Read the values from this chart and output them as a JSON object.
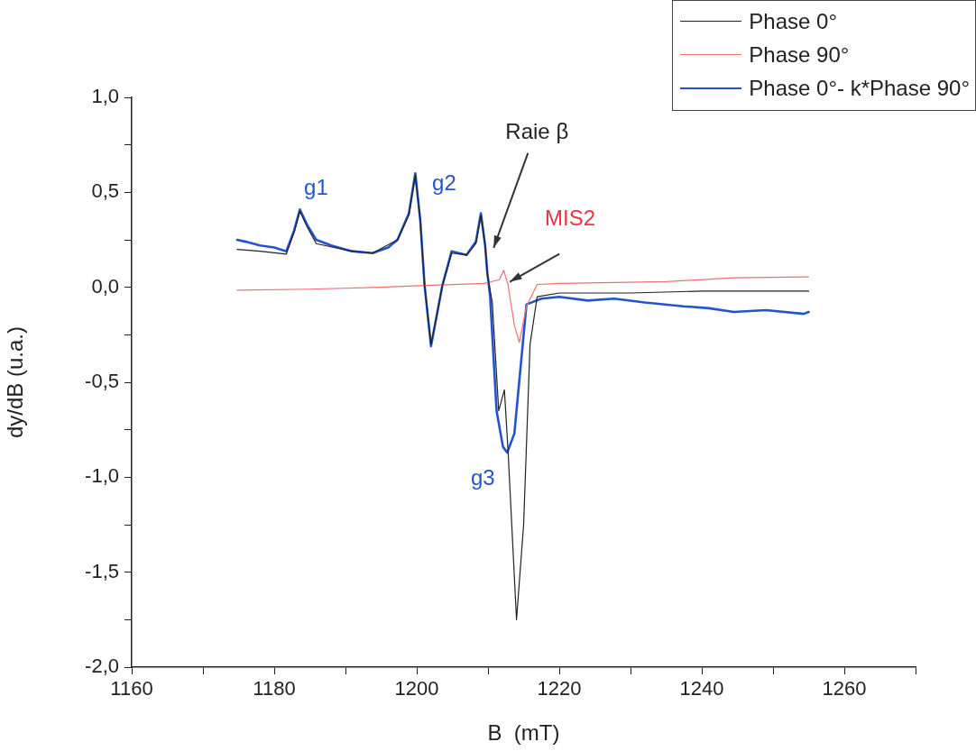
{
  "chart_data": {
    "type": "line",
    "xlabel": "B  (mT)",
    "ylabel": "dy/dB (u.a.)",
    "xlim": [
      1160,
      1270
    ],
    "ylim": [
      -2.0,
      1.0
    ],
    "xticks": [
      1160,
      {
        "value": 1170,
        "label": null
      },
      1180,
      {
        "value": 1190,
        "label": null
      },
      1200,
      {
        "value": 1210,
        "label": null
      },
      1220,
      {
        "value": 1230,
        "label": null
      },
      1240,
      {
        "value": 1250,
        "label": null
      },
      1260,
      {
        "value": 1270,
        "label": null
      }
    ],
    "yticks": [
      {
        "value": -2.0,
        "label": "-2,0"
      },
      {
        "value": -1.75,
        "label": null
      },
      {
        "value": -1.5,
        "label": "-1,5"
      },
      {
        "value": -1.25,
        "label": null
      },
      {
        "value": -1.0,
        "label": "-1,0"
      },
      {
        "value": -0.75,
        "label": null
      },
      {
        "value": -0.5,
        "label": "-0,5"
      },
      {
        "value": -0.25,
        "label": null
      },
      {
        "value": 0.0,
        "label": "0,0"
      },
      {
        "value": 0.25,
        "label": null
      },
      {
        "value": 0.5,
        "label": "0,5"
      },
      {
        "value": 0.75,
        "label": null
      },
      {
        "value": 1.0,
        "label": "1,0"
      }
    ],
    "grid": false,
    "legend": "top right",
    "marker": "none",
    "line_style": "solid",
    "series": [
      {
        "name": "Phase 0°",
        "color": "#222222",
        "x": [
          1174.8,
          1178,
          1181.7,
          1182.8,
          1183.6,
          1184.6,
          1185.9,
          1190.9,
          1193.8,
          1197.3,
          1198.9,
          1199.8,
          1200.5,
          1201.1,
          1202,
          1202.8,
          1203.6,
          1204.9,
          1207,
          1208.3,
          1209,
          1209.6,
          1209.9,
          1210.6,
          1211.5,
          1212.3,
          1212.8,
          1214,
          1215,
          1215.9,
          1216.9,
          1220,
          1230,
          1240,
          1255
        ],
        "values": [
          0.2,
          0.19,
          0.175,
          0.29,
          0.4,
          0.32,
          0.23,
          0.19,
          0.18,
          0.25,
          0.38,
          0.59,
          0.35,
          0.01,
          -0.3,
          -0.15,
          0.01,
          0.18,
          0.17,
          0.23,
          0.38,
          0.22,
          0.07,
          -0.08,
          -0.65,
          -0.54,
          -0.85,
          -1.75,
          -1.25,
          -0.3,
          -0.05,
          -0.03,
          -0.03,
          -0.02,
          -0.02
        ]
      },
      {
        "name": "Phase 90°",
        "color": "#f07070",
        "x": [
          1174.8,
          1185,
          1195,
          1201,
          1209.5,
          1211.6,
          1212.2,
          1212.8,
          1213.7,
          1214.4,
          1215.4,
          1216.9,
          1220,
          1227.7,
          1235,
          1244.5,
          1255
        ],
        "values": [
          -0.015,
          -0.01,
          0.0,
          0.01,
          0.02,
          0.04,
          0.09,
          0.015,
          -0.2,
          -0.29,
          -0.1,
          0.015,
          0.02,
          0.025,
          0.03,
          0.05,
          0.055
        ]
      },
      {
        "name": "Phase 0°- k*Phase 90°",
        "color": "#2255cc",
        "x": [
          1174.8,
          1176,
          1178,
          1180,
          1181.7,
          1182.8,
          1183.6,
          1184.6,
          1185.9,
          1188,
          1190.9,
          1193.8,
          1196,
          1197.3,
          1198.9,
          1199.8,
          1200.5,
          1201.1,
          1202,
          1202.8,
          1203.6,
          1204.9,
          1207,
          1208.3,
          1209,
          1209.6,
          1209.9,
          1210.3,
          1211.2,
          1212.1,
          1212.7,
          1213.7,
          1214.8,
          1215.4,
          1217.5,
          1220,
          1224,
          1227.7,
          1232,
          1237.4,
          1241,
          1244.5,
          1249,
          1254.3,
          1255
        ],
        "values": [
          0.25,
          0.24,
          0.22,
          0.21,
          0.19,
          0.3,
          0.41,
          0.33,
          0.25,
          0.22,
          0.19,
          0.18,
          0.21,
          0.25,
          0.39,
          0.6,
          0.35,
          0.01,
          -0.31,
          -0.15,
          0.01,
          0.19,
          0.17,
          0.24,
          0.39,
          0.22,
          0.08,
          -0.05,
          -0.65,
          -0.84,
          -0.87,
          -0.77,
          -0.33,
          -0.09,
          -0.06,
          -0.05,
          -0.07,
          -0.06,
          -0.08,
          -0.1,
          -0.11,
          -0.13,
          -0.12,
          -0.14,
          -0.13
        ]
      }
    ],
    "annotations": [
      {
        "text": "g1",
        "x": 1183.6,
        "y": 0.41
      },
      {
        "text": "g2",
        "x": 1199.8,
        "y": 0.6
      },
      {
        "text": "g3",
        "x": 1212.7,
        "y": -0.87
      },
      "Raie β",
      {
        "text": "MIS2",
        "x": 1212.8,
        "y": 0.015
      }
    ]
  }
}
